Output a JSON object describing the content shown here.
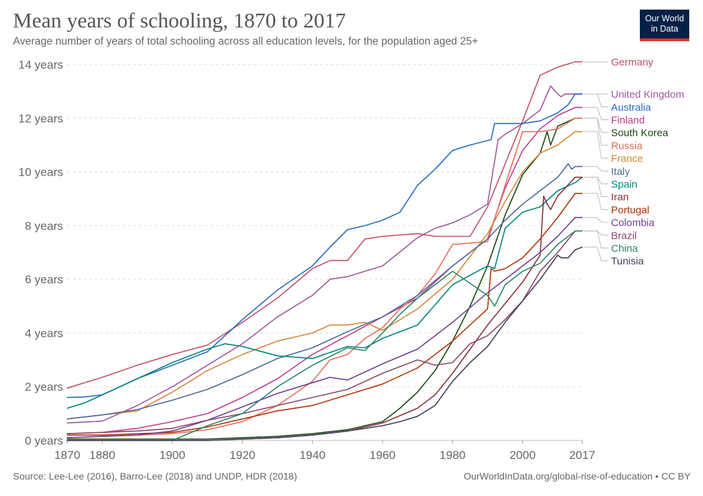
{
  "header": {
    "title": "Mean years of schooling, 1870 to 2017",
    "subtitle": "Average number of years of total schooling across all education levels, for the population aged 25+"
  },
  "logo": {
    "line1": "Our World",
    "line2": "in Data",
    "bg_color": "#002147",
    "accent_color": "#e0321c"
  },
  "footer": {
    "source": "Source: Lee-Lee (2016), Barro-Lee (2018) and UNDP, HDR (2018)",
    "credit": "OurWorldInData.org/global-rise-of-education • CC BY"
  },
  "chart_data": {
    "type": "line",
    "title": "Mean years of schooling, 1870 to 2017",
    "subtitle": "Average number of years of total schooling across all education levels, for the population aged 25+",
    "xlim": [
      1870,
      2017
    ],
    "ylim": [
      0,
      14
    ],
    "x_ticks": [
      {
        "value": 1870,
        "label": "1870"
      },
      {
        "value": 1880,
        "label": "1880"
      },
      {
        "value": 1900,
        "label": "1900"
      },
      {
        "value": 1920,
        "label": "1920"
      },
      {
        "value": 1940,
        "label": "1940"
      },
      {
        "value": 1960,
        "label": "1960"
      },
      {
        "value": 1980,
        "label": "1980"
      },
      {
        "value": 2000,
        "label": "2000"
      },
      {
        "value": 2017,
        "label": "2017"
      }
    ],
    "y_ticks": [
      {
        "value": 0,
        "label": "0 years"
      },
      {
        "value": 2,
        "label": "2 years"
      },
      {
        "value": 4,
        "label": "4 years"
      },
      {
        "value": 6,
        "label": "6 years"
      },
      {
        "value": 8,
        "label": "8 years"
      },
      {
        "value": 10,
        "label": "10 years"
      },
      {
        "value": 12,
        "label": "12 years"
      },
      {
        "value": 14,
        "label": "14 years"
      }
    ],
    "grid": "horizontal dashed",
    "legend": "right, labels at line ends",
    "series": [
      {
        "name": "Germany",
        "color": "#c15065",
        "x": [
          1870,
          1880,
          1890,
          1900,
          1910,
          1920,
          1930,
          1940,
          1945,
          1950,
          1955,
          1960,
          1970,
          1975,
          1980,
          1985,
          1990,
          1995,
          2000,
          2005,
          2010,
          2015,
          2017
        ],
        "y": [
          1.95,
          2.35,
          2.8,
          3.2,
          3.55,
          4.4,
          5.3,
          6.4,
          6.7,
          6.7,
          7.5,
          7.6,
          7.7,
          7.6,
          7.6,
          7.6,
          8.7,
          10.3,
          11.9,
          13.6,
          13.9,
          14.1,
          14.1
        ]
      },
      {
        "name": "United Kingdom",
        "color": "#a2559c",
        "x": [
          1870,
          1880,
          1890,
          1900,
          1910,
          1920,
          1930,
          1940,
          1945,
          1950,
          1955,
          1960,
          1970,
          1975,
          1980,
          1985,
          1990,
          1993,
          1995,
          2000,
          2005,
          2008,
          2010,
          2011,
          2012,
          2015,
          2017
        ],
        "y": [
          0.65,
          0.72,
          1.3,
          2.0,
          2.8,
          3.6,
          4.6,
          5.4,
          6.0,
          6.1,
          6.3,
          6.5,
          7.55,
          7.9,
          8.1,
          8.4,
          8.8,
          11.2,
          11.4,
          11.8,
          12.3,
          13.2,
          12.9,
          12.8,
          12.9,
          12.9,
          12.9
        ]
      },
      {
        "name": "Australia",
        "color": "#286bbb",
        "x": [
          1870,
          1875,
          1880,
          1890,
          1900,
          1910,
          1920,
          1930,
          1940,
          1945,
          1950,
          1955,
          1960,
          1965,
          1970,
          1975,
          1980,
          1985,
          1991,
          1992,
          1995,
          2000,
          2005,
          2010,
          2013,
          2015,
          2017
        ],
        "y": [
          1.6,
          1.62,
          1.7,
          2.3,
          2.8,
          3.3,
          4.5,
          5.6,
          6.5,
          7.2,
          7.85,
          8.0,
          8.2,
          8.5,
          9.5,
          10.1,
          10.8,
          11.0,
          11.2,
          11.8,
          11.8,
          11.8,
          11.9,
          12.2,
          12.5,
          12.9,
          12.9
        ]
      },
      {
        "name": "Finland",
        "color": "#c03c8c",
        "x": [
          1870,
          1880,
          1890,
          1900,
          1910,
          1920,
          1930,
          1940,
          1950,
          1960,
          1970,
          1980,
          1990,
          1995,
          2000,
          2005,
          2010,
          2015,
          2017
        ],
        "y": [
          0.25,
          0.3,
          0.45,
          0.7,
          1.0,
          1.6,
          2.3,
          3.2,
          3.9,
          4.6,
          5.3,
          6.5,
          7.5,
          9.4,
          10.8,
          11.6,
          12.1,
          12.4,
          12.4
        ]
      },
      {
        "name": "South Korea",
        "color": "#18470f",
        "x": [
          1870,
          1900,
          1910,
          1920,
          1930,
          1940,
          1950,
          1955,
          1960,
          1965,
          1970,
          1975,
          1980,
          1985,
          1990,
          1995,
          2000,
          2005,
          2007,
          2008,
          2010,
          2015,
          2017
        ],
        "y": [
          0.05,
          0.05,
          0.05,
          0.1,
          0.15,
          0.25,
          0.4,
          0.55,
          0.7,
          1.2,
          1.8,
          2.6,
          3.7,
          5.0,
          6.5,
          8.4,
          9.9,
          10.7,
          11.5,
          11.0,
          11.7,
          12.0,
          12.0
        ]
      },
      {
        "name": "Russia",
        "color": "#e56e5a",
        "x": [
          1870,
          1880,
          1890,
          1900,
          1910,
          1920,
          1930,
          1940,
          1945,
          1950,
          1955,
          1960,
          1965,
          1970,
          1975,
          1980,
          1990,
          1995,
          2000,
          2005,
          2010,
          2015,
          2017
        ],
        "y": [
          0.1,
          0.15,
          0.2,
          0.25,
          0.4,
          0.7,
          1.3,
          2.2,
          3.0,
          3.2,
          3.8,
          4.2,
          4.9,
          5.4,
          6.2,
          7.3,
          7.4,
          9.5,
          11.5,
          11.5,
          11.6,
          12.0,
          12.0
        ]
      },
      {
        "name": "France",
        "color": "#d4863a",
        "x": [
          1870,
          1880,
          1890,
          1900,
          1910,
          1920,
          1930,
          1940,
          1945,
          1950,
          1955,
          1960,
          1970,
          1980,
          1990,
          1995,
          2000,
          2005,
          2010,
          2015,
          2017
        ],
        "y": [
          0.8,
          0.95,
          1.1,
          1.8,
          2.6,
          3.2,
          3.7,
          4.0,
          4.3,
          4.3,
          4.4,
          4.1,
          4.9,
          6.0,
          7.7,
          8.9,
          10.0,
          10.7,
          11.0,
          11.5,
          11.5
        ]
      },
      {
        "name": "Italy",
        "color": "#4c6a9c",
        "x": [
          1870,
          1880,
          1890,
          1900,
          1910,
          1920,
          1930,
          1940,
          1950,
          1960,
          1970,
          1980,
          1990,
          1995,
          2000,
          2005,
          2010,
          2013,
          2014,
          2015,
          2017
        ],
        "y": [
          0.8,
          0.95,
          1.15,
          1.5,
          1.9,
          2.45,
          3.05,
          3.45,
          4.05,
          4.6,
          5.4,
          6.5,
          7.5,
          8.2,
          8.8,
          9.3,
          9.8,
          10.3,
          10.1,
          10.2,
          10.2
        ]
      },
      {
        "name": "Spain",
        "color": "#00847e",
        "x": [
          1870,
          1875,
          1880,
          1890,
          1900,
          1910,
          1915,
          1920,
          1930,
          1940,
          1950,
          1955,
          1960,
          1970,
          1980,
          1990,
          1992,
          1995,
          2000,
          2005,
          2010,
          2015,
          2017
        ],
        "y": [
          1.2,
          1.4,
          1.7,
          2.3,
          2.9,
          3.4,
          3.6,
          3.5,
          3.15,
          3.05,
          3.5,
          3.45,
          3.8,
          4.3,
          5.8,
          6.5,
          6.4,
          7.9,
          8.5,
          8.7,
          9.3,
          9.6,
          9.8
        ]
      },
      {
        "name": "Iran",
        "color": "#883039",
        "x": [
          1870,
          1900,
          1910,
          1920,
          1930,
          1940,
          1950,
          1960,
          1970,
          1975,
          1980,
          1985,
          1990,
          1995,
          2000,
          2005,
          2006,
          2007,
          2008,
          2010,
          2015,
          2017
        ],
        "y": [
          0.0,
          0.0,
          0.0,
          0.05,
          0.1,
          0.2,
          0.35,
          0.65,
          1.2,
          1.7,
          2.5,
          3.4,
          4.3,
          5.1,
          5.9,
          6.9,
          9.1,
          8.8,
          8.6,
          9.1,
          9.8,
          9.8
        ]
      },
      {
        "name": "Portugal",
        "color": "#b13507",
        "x": [
          1870,
          1880,
          1890,
          1900,
          1910,
          1920,
          1930,
          1940,
          1950,
          1960,
          1970,
          1980,
          1990,
          1991,
          1992,
          1995,
          2000,
          2005,
          2010,
          2015,
          2017
        ],
        "y": [
          0.2,
          0.2,
          0.25,
          0.3,
          0.5,
          0.8,
          1.1,
          1.3,
          1.7,
          2.1,
          2.7,
          3.7,
          4.9,
          6.4,
          6.3,
          6.4,
          6.8,
          7.5,
          8.3,
          9.2,
          9.2
        ]
      },
      {
        "name": "Colombia",
        "color": "#6d3e91",
        "x": [
          1870,
          1880,
          1890,
          1900,
          1910,
          1920,
          1930,
          1940,
          1945,
          1950,
          1960,
          1970,
          1980,
          1990,
          2000,
          2005,
          2010,
          2015,
          2017
        ],
        "y": [
          0.1,
          0.15,
          0.2,
          0.35,
          0.75,
          1.25,
          1.75,
          2.15,
          2.35,
          2.25,
          2.85,
          3.4,
          4.4,
          5.5,
          6.5,
          7.0,
          7.6,
          8.3,
          8.3
        ]
      },
      {
        "name": "Brazil",
        "color": "#8c4569",
        "x": [
          1870,
          1880,
          1890,
          1900,
          1910,
          1920,
          1930,
          1940,
          1950,
          1960,
          1970,
          1975,
          1980,
          1985,
          1990,
          1995,
          2000,
          2005,
          2010,
          2015,
          2017
        ],
        "y": [
          0.25,
          0.3,
          0.35,
          0.45,
          0.75,
          1.0,
          1.3,
          1.6,
          1.9,
          2.5,
          3.0,
          2.8,
          2.9,
          3.6,
          3.9,
          4.5,
          5.2,
          6.3,
          7.0,
          7.8,
          7.8
        ]
      },
      {
        "name": "China",
        "color": "#2c8465",
        "x": [
          1870,
          1890,
          1900,
          1910,
          1920,
          1930,
          1940,
          1950,
          1955,
          1960,
          1965,
          1970,
          1980,
          1990,
          1992,
          1995,
          2000,
          2005,
          2010,
          2015,
          2017
        ],
        "y": [
          0.0,
          0.0,
          0.0,
          0.55,
          1.0,
          2.0,
          2.8,
          3.45,
          3.35,
          4.0,
          4.7,
          5.3,
          6.3,
          5.4,
          5.0,
          5.8,
          6.3,
          6.6,
          7.3,
          7.8,
          7.8
        ]
      },
      {
        "name": "Tunisia",
        "color": "#3d3d5c",
        "x": [
          1870,
          1900,
          1910,
          1920,
          1930,
          1940,
          1950,
          1960,
          1965,
          1970,
          1975,
          1980,
          1985,
          1990,
          1995,
          2000,
          2005,
          2010,
          2011,
          2013,
          2015,
          2017
        ],
        "y": [
          0.0,
          0.0,
          0.0,
          0.05,
          0.1,
          0.2,
          0.35,
          0.55,
          0.7,
          0.9,
          1.3,
          2.2,
          2.9,
          3.5,
          4.4,
          5.2,
          6.0,
          6.9,
          6.8,
          6.8,
          7.1,
          7.2
        ]
      }
    ]
  }
}
